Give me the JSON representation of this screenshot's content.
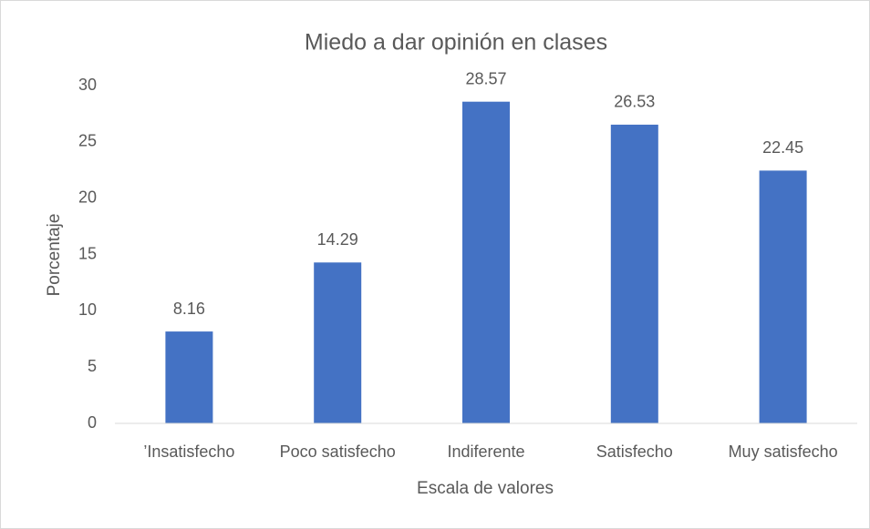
{
  "chart_data": {
    "type": "bar",
    "title": "Miedo a dar opinión en clases",
    "x_label": "Escala de valores",
    "y_label": "Porcentaje",
    "categories": [
      "’Insatisfecho",
      "Poco satisfecho",
      "Indiferente",
      "Satisfecho",
      "Muy satisfecho"
    ],
    "values": [
      8.16,
      14.29,
      28.57,
      26.53,
      22.45
    ],
    "color": "#4472c4",
    "ylim": [
      0,
      30
    ],
    "yticks": [
      0,
      5,
      10,
      15,
      20,
      25,
      30
    ],
    "grid": false,
    "data_labels": true
  }
}
